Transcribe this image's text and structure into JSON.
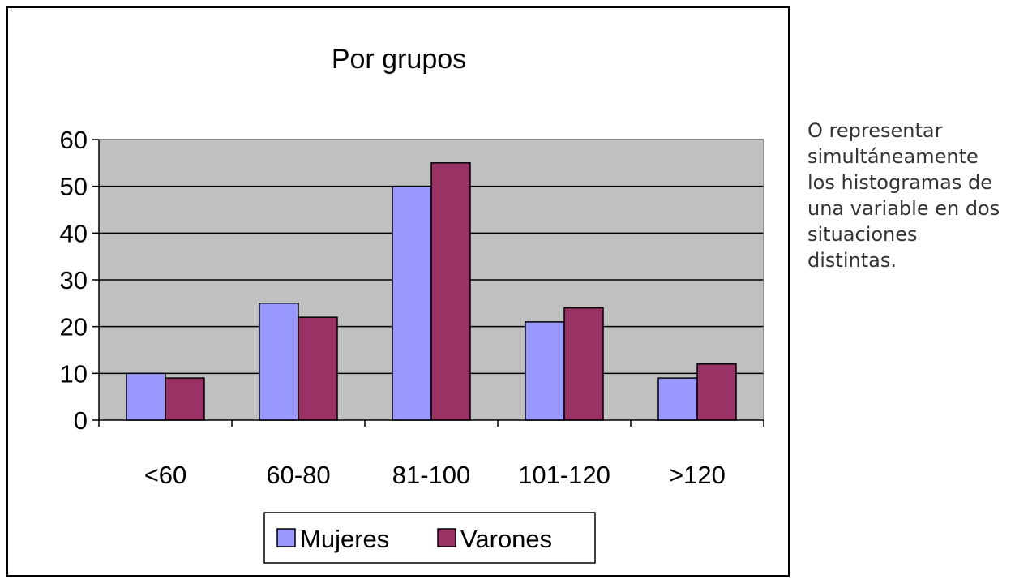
{
  "chart_data": {
    "type": "bar",
    "title": "Por grupos",
    "categories": [
      "<60",
      "60-80",
      "81-100",
      "101-120",
      ">120"
    ],
    "series": [
      {
        "name": "Mujeres",
        "values": [
          10,
          25,
          50,
          21,
          9
        ]
      },
      {
        "name": "Varones",
        "values": [
          9,
          22,
          55,
          24,
          12
        ]
      }
    ],
    "yticks": [
      "0",
      "10",
      "20",
      "30",
      "40",
      "50",
      "60"
    ],
    "ylim": [
      0,
      60
    ],
    "grid": true,
    "legend": "bottom",
    "colors": {
      "Mujeres": "#9999FF",
      "Varones": "#993366",
      "plot_bg": "#C0C0C0"
    }
  },
  "side_text": "O representar simultáneamente los histogramas de una variable en dos situaciones distintas."
}
